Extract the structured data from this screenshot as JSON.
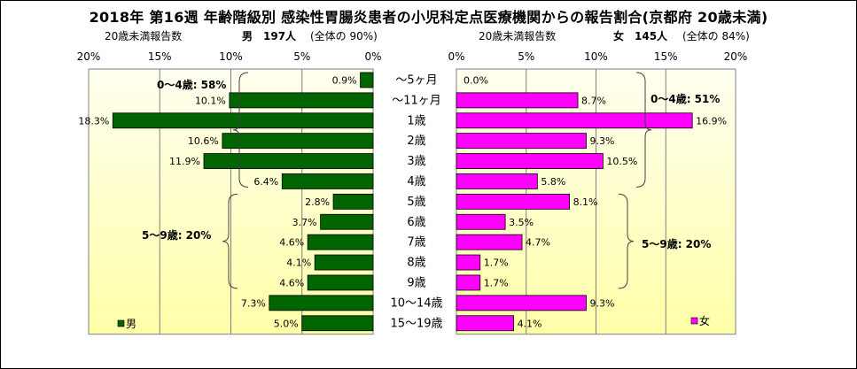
{
  "title": "2018年 第16週 年齢階級別 感染性胃腸炎患者の小児科定点医療機関からの報告割合(京都府 20歳未満)",
  "male_header": {
    "label": "20歳未満報告数",
    "sex": "男",
    "count": "197人",
    "share": "(全体の 90%)"
  },
  "female_header": {
    "label": "20歳未満報告数",
    "sex": "女",
    "count": "145人",
    "share": "(全体の 84%)"
  },
  "colors": {
    "male": "#006400",
    "female": "#ff00ff",
    "plot_bg_top": "#fffff0",
    "plot_bg_bottom": "#ffffa8",
    "accent_line": "#808080"
  },
  "chart_data": [
    {
      "type": "bar",
      "orientation": "horizontal-reversed",
      "series": [
        {
          "name": "男",
          "values": [
            0.9,
            10.1,
            18.3,
            10.6,
            11.9,
            6.4,
            2.8,
            3.7,
            4.6,
            4.1,
            4.6,
            7.3,
            5.0
          ]
        }
      ],
      "categories": [
        "〜5ヶ月",
        "〜11ヶ月",
        "1歳",
        "2歳",
        "3歳",
        "4歳",
        "5歳",
        "6歳",
        "7歳",
        "8歳",
        "9歳",
        "10〜14歳",
        "15〜19歳"
      ],
      "data_labels": [
        "0.9%",
        "10.1%",
        "18.3%",
        "10.6%",
        "11.9%",
        "6.4%",
        "2.8%",
        "3.7%",
        "4.6%",
        "4.1%",
        "4.6%",
        "7.3%",
        "5.0%"
      ],
      "xlim": [
        0,
        20
      ],
      "xticks": [
        "20%",
        "15%",
        "10%",
        "5%",
        "0%"
      ],
      "legend": "bottom-left",
      "annotations": [
        "0〜4歳: 58%",
        "5〜9歳: 20%"
      ]
    },
    {
      "type": "bar",
      "orientation": "horizontal",
      "series": [
        {
          "name": "女",
          "values": [
            0.0,
            8.7,
            16.9,
            9.3,
            10.5,
            5.8,
            8.1,
            3.5,
            4.7,
            1.7,
            1.7,
            9.3,
            4.1
          ]
        }
      ],
      "categories": [
        "〜5ヶ月",
        "〜11ヶ月",
        "1歳",
        "2歳",
        "3歳",
        "4歳",
        "5歳",
        "6歳",
        "7歳",
        "8歳",
        "9歳",
        "10〜14歳",
        "15〜19歳"
      ],
      "data_labels": [
        "0.0%",
        "8.7%",
        "16.9%",
        "9.3%",
        "10.5%",
        "5.8%",
        "8.1%",
        "3.5%",
        "4.7%",
        "1.7%",
        "1.7%",
        "9.3%",
        "4.1%"
      ],
      "xlim": [
        0,
        20
      ],
      "xticks": [
        "0%",
        "5%",
        "10%",
        "15%",
        "20%"
      ],
      "legend": "bottom-right",
      "annotations": [
        "0〜4歳: 51%",
        "5〜9歳: 20%"
      ]
    }
  ]
}
